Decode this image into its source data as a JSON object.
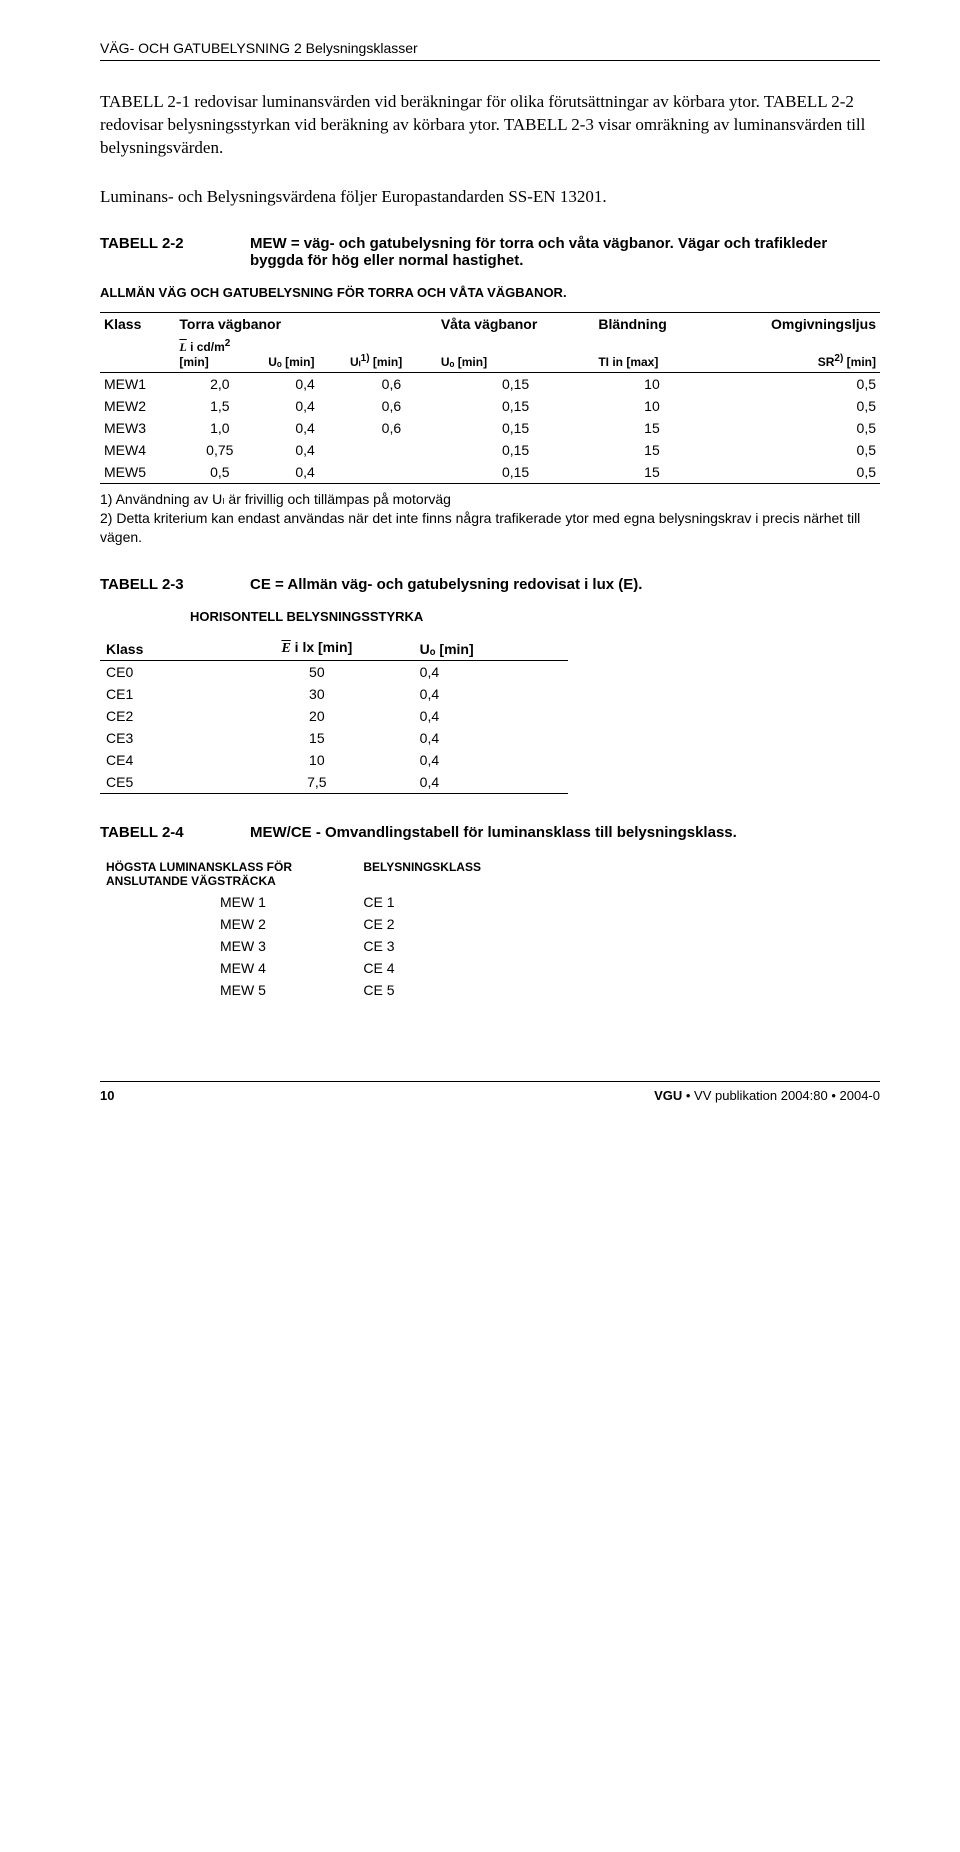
{
  "header": "VÄG- OCH GATUBELYSNING 2 Belysningsklasser",
  "intro": "TABELL 2-1 redovisar luminansvärden vid beräkningar för olika förutsättningar av körbara ytor. TABELL 2-2 redovisar belysningsstyrkan vid beräkning av körbara ytor. TABELL 2-3 visar omräkning av luminansvärden till belysningsvärden.",
  "intro2": "Luminans- och Belysningsvärdena följer Europastandarden SS-EN 13201.",
  "t22": {
    "label": "TABELL 2-2",
    "title": "MEW = väg- och gatubelysning för torra och våta vägbanor. Vägar och trafikleder byggda för hög eller normal hastighet.",
    "subhead": "ALLMÄN VÄG OCH GATUBELYSNING FÖR TORRA OCH VÅTA VÄGBANOR.",
    "h_klass": "Klass",
    "h_torra": "Torra vägbanor",
    "h_vata": "Våta vägbanor",
    "h_bland": "Bländning",
    "h_omg": "Omgivningsljus",
    "sub_l": "i cd/m",
    "sub_l2": "[min]",
    "sub_uo": "Uₒ [min]",
    "sub_ul": "Uₗ",
    "sub_ul_sup": "1)",
    "sub_ul_rest": " [min]",
    "sub_uo2": "Uₒ [min]",
    "sub_ti": "TI in [max]",
    "sub_sr": "SR",
    "sub_sr_sup": "2)",
    "sub_sr_rest": " [min]",
    "rows": [
      [
        "MEW1",
        "2,0",
        "0,4",
        "0,6",
        "0,15",
        "10",
        "0,5"
      ],
      [
        "MEW2",
        "1,5",
        "0,4",
        "0,6",
        "0,15",
        "10",
        "0,5"
      ],
      [
        "MEW3",
        "1,0",
        "0,4",
        "0,6",
        "0,15",
        "15",
        "0,5"
      ],
      [
        "MEW4",
        "0,75",
        "0,4",
        "",
        "0,15",
        "15",
        "0,5"
      ],
      [
        "MEW5",
        "0,5",
        "0,4",
        "",
        "0,15",
        "15",
        "0,5"
      ]
    ],
    "note1": "1) Användning av Uₗ är frivillig och tillämpas på motorväg",
    "note2": "2) Detta kriterium kan endast användas när det inte finns några trafikerade ytor med egna belysningskrav i precis närhet till vägen."
  },
  "t23": {
    "label": "TABELL 2-3",
    "title": "CE = Allmän väg- och gatubelysning redovisat i lux (E).",
    "subhead": "HORISONTELL BELYSNINGSSTYRKA",
    "h_klass": "Klass",
    "h_e": " i lx [min]",
    "h_uo": "Uₒ [min]",
    "rows": [
      [
        "CE0",
        "50",
        "0,4"
      ],
      [
        "CE1",
        "30",
        "0,4"
      ],
      [
        "CE2",
        "20",
        "0,4"
      ],
      [
        "CE3",
        "15",
        "0,4"
      ],
      [
        "CE4",
        "10",
        "0,4"
      ],
      [
        "CE5",
        "7,5",
        "0,4"
      ]
    ]
  },
  "t24": {
    "label": "TABELL 2-4",
    "title": "MEW/CE - Omvandlingstabell för luminansklass till belysningsklass.",
    "h1a": "HÖGSTA LUMINANSKLASS FÖR",
    "h1b": "ANSLUTANDE VÄGSTRÄCKA",
    "h2": "BELYSNINGSKLASS",
    "rows": [
      [
        "MEW 1",
        "CE 1"
      ],
      [
        "MEW 2",
        "CE 2"
      ],
      [
        "MEW 3",
        "CE 3"
      ],
      [
        "MEW 4",
        "CE 4"
      ],
      [
        "MEW 5",
        "CE 5"
      ]
    ]
  },
  "footer": {
    "pagenum": "10",
    "pub": "VGU  • VV publikation 2004:80 •  2004-0"
  }
}
